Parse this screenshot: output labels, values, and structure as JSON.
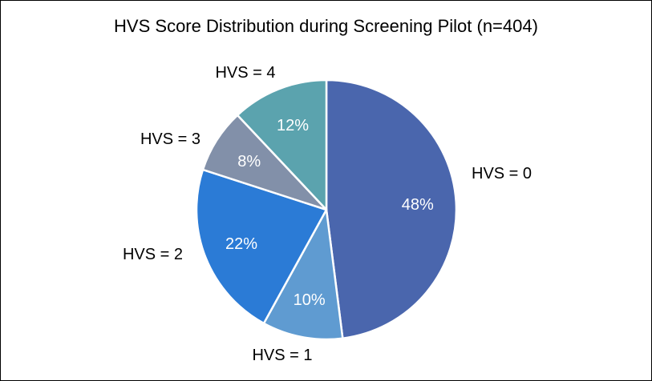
{
  "chart_data": {
    "type": "pie",
    "title": "HVS Score Distribution during Screening Pilot (n=404)",
    "categories": [
      "HVS = 0",
      "HVS = 1",
      "HVS = 2",
      "HVS = 3",
      "HVS = 4"
    ],
    "values": [
      48,
      10,
      22,
      8,
      12
    ],
    "data_labels": [
      "48%",
      "10%",
      "22%",
      "8%",
      "12%"
    ],
    "colors": [
      "#4a66ad",
      "#5f9bd1",
      "#2b7bd6",
      "#8290a9",
      "#5ba3ae"
    ],
    "start_angle_deg": 0,
    "direction": "clockwise",
    "legend": "none"
  }
}
